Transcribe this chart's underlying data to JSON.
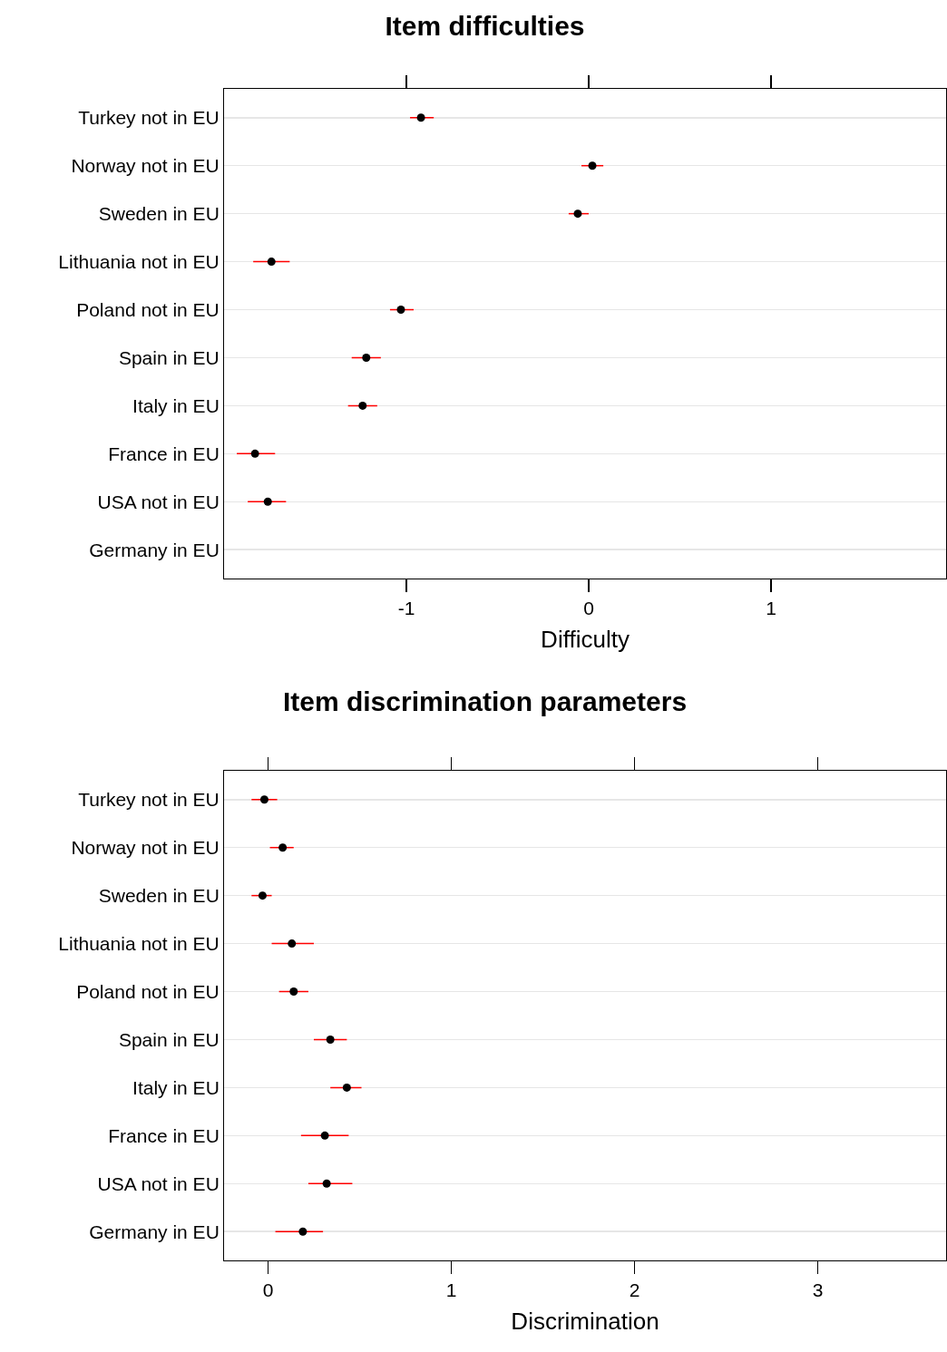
{
  "chart_data": [
    {
      "type": "scatter",
      "title": "Item difficulties",
      "xlabel": "Difficulty",
      "orientation": "horizontal",
      "marker": "circle",
      "grid": "y",
      "tick_labels": "x",
      "color": "#000000",
      "categories": [
        "Turkey not in EU",
        "Norway not in EU",
        "Sweden in EU",
        "Lithuania not in EU",
        "Poland not in EU",
        "Spain in EU",
        "Italy in EU",
        "France in EU",
        "USA not in EU",
        "Germany in EU"
      ],
      "values": [
        -0.92,
        0.02,
        -0.06,
        -1.74,
        -1.03,
        -1.22,
        -1.24,
        -1.83,
        -1.76,
        null
      ],
      "errors": [
        [
          -0.98,
          -0.85
        ],
        [
          -0.04,
          0.08
        ],
        [
          -0.11,
          0.0
        ],
        [
          -1.84,
          -1.64
        ],
        [
          -1.09,
          -0.96
        ],
        [
          -1.3,
          -1.14
        ],
        [
          -1.32,
          -1.16
        ],
        [
          -1.93,
          -1.72
        ],
        [
          -1.87,
          -1.66
        ],
        null
      ],
      "xlim": [
        -2,
        1.96
      ],
      "xticks": [
        -1,
        0,
        1
      ]
    },
    {
      "type": "scatter",
      "title": "Item discrimination parameters",
      "xlabel": "Discrimination",
      "orientation": "horizontal",
      "marker": "circle",
      "grid": "y",
      "tick_labels": "x",
      "color": "#000000",
      "categories": [
        "Turkey not in EU",
        "Norway not in EU",
        "Sweden in EU",
        "Lithuania not in EU",
        "Poland not in EU",
        "Spain in EU",
        "Italy in EU",
        "France in EU",
        "USA not in EU",
        "Germany in EU"
      ],
      "values": [
        -0.02,
        0.08,
        -0.03,
        0.13,
        0.14,
        0.34,
        0.43,
        0.31,
        0.32,
        0.19
      ],
      "errors": [
        [
          -0.09,
          0.05
        ],
        [
          0.01,
          0.14
        ],
        [
          -0.09,
          0.02
        ],
        [
          0.02,
          0.25
        ],
        [
          0.06,
          0.22
        ],
        [
          0.25,
          0.43
        ],
        [
          0.34,
          0.51
        ],
        [
          0.18,
          0.44
        ],
        [
          0.22,
          0.46
        ],
        [
          0.04,
          0.3
        ]
      ],
      "xlim": [
        -0.24,
        3.7
      ],
      "xticks": [
        0,
        1,
        2,
        3
      ]
    }
  ]
}
